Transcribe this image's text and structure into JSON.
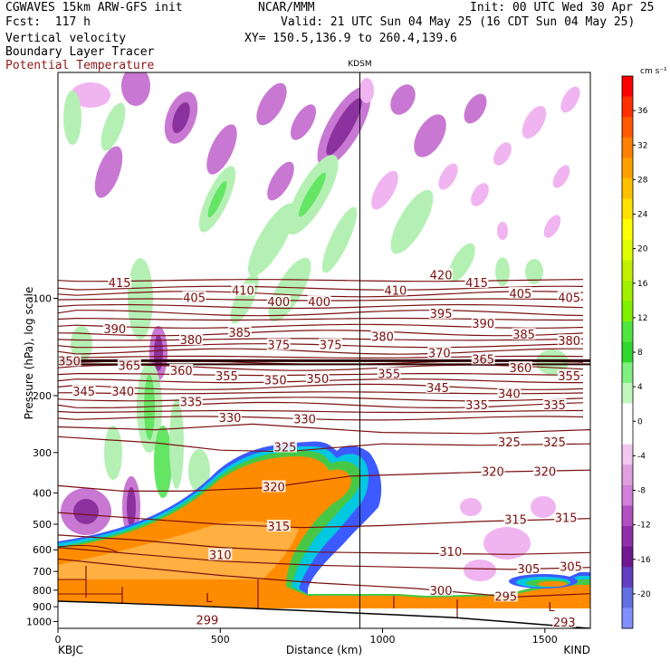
{
  "header": {
    "left1": "CGWAVES 15km ARW-GFS init",
    "left2": "Fcst:  117 h",
    "left3": "Vertical velocity",
    "left4": "Boundary Layer Tracer",
    "left5": "Potential Temperature",
    "center1": "NCAR/MMM",
    "right1": "Init: 00 UTC Wed 30 Apr 25",
    "right2": "Valid: 21 UTC Sun 04 May 25 (16 CDT Sun 04 May 25)",
    "right3": "XY= 150.5,136.9 to 260.4,139.6"
  },
  "colors": {
    "theta": "#7a1010",
    "tracer_orange": "#ff8c00",
    "tracer_light": "#ffb040",
    "tracer_green": "#46c846",
    "tracer_cyan": "#00c8e0",
    "tracer_blue": "#3c5aff",
    "w_up_light": "#b4f0b4",
    "w_up_green": "#64e664",
    "w_down_light": "#f0b4f0",
    "w_down_mid": "#c878d2",
    "w_down_dark": "#8c329e"
  },
  "chart_data": {
    "type": "cross-section",
    "station_marker": "KDSM",
    "station_distance_km": 930,
    "xlabel": "Distance (km)",
    "ylabel": "Pressure (hPa), log scale",
    "xlim": [
      0,
      1640
    ],
    "ylim": [
      1050,
      20
    ],
    "x_ticks": [
      0,
      500,
      1000,
      1500
    ],
    "x_end_labels": [
      "KBJC",
      "KIND"
    ],
    "y_ticks": [
      100,
      200,
      300,
      400,
      500,
      600,
      700,
      800,
      900,
      1000
    ],
    "colorbar": {
      "unit": "cm s⁻¹",
      "ticks": [
        36,
        32,
        28,
        24,
        20,
        16,
        12,
        8,
        4,
        0,
        -4,
        -8,
        -12,
        -16,
        -20
      ],
      "colors": [
        "#ff0000",
        "#ff3000",
        "#ff5a00",
        "#ff8000",
        "#ffa000",
        "#ffc000",
        "#ffe000",
        "#ffff00",
        "#e0ff00",
        "#c0f000",
        "#a0f000",
        "#80f000",
        "#50e640",
        "#30d830",
        "#80f080",
        "#c0f8c0",
        "#ffffff",
        "#ffffff",
        "#f0c8f0",
        "#e0a0e0",
        "#d080d8",
        "#b050c0",
        "#9030a8",
        "#701890",
        "#6040c0",
        "#6070e0",
        "#8090ff"
      ]
    },
    "theta_labels": [
      {
        "text": "415",
        "x": 190,
        "p": 90
      },
      {
        "text": "405",
        "x": 420,
        "p": 100
      },
      {
        "text": "410",
        "x": 570,
        "p": 95
      },
      {
        "text": "400",
        "x": 680,
        "p": 103
      },
      {
        "text": "400",
        "x": 805,
        "p": 103
      },
      {
        "text": "410",
        "x": 1040,
        "p": 95
      },
      {
        "text": "420",
        "x": 1180,
        "p": 85
      },
      {
        "text": "415",
        "x": 1290,
        "p": 90
      },
      {
        "text": "405",
        "x": 1425,
        "p": 97
      },
      {
        "text": "405",
        "x": 1575,
        "p": 100
      },
      {
        "text": "390",
        "x": 175,
        "p": 125
      },
      {
        "text": "380",
        "x": 410,
        "p": 135
      },
      {
        "text": "385",
        "x": 560,
        "p": 128
      },
      {
        "text": "375",
        "x": 680,
        "p": 140
      },
      {
        "text": "375",
        "x": 840,
        "p": 140
      },
      {
        "text": "395",
        "x": 1180,
        "p": 112
      },
      {
        "text": "390",
        "x": 1310,
        "p": 120
      },
      {
        "text": "385",
        "x": 1435,
        "p": 130
      },
      {
        "text": "380",
        "x": 1000,
        "p": 132
      },
      {
        "text": "380",
        "x": 1575,
        "p": 136
      },
      {
        "text": "370",
        "x": 1175,
        "p": 148
      },
      {
        "text": "365",
        "x": 1310,
        "p": 155
      },
      {
        "text": "360",
        "x": 1425,
        "p": 165
      },
      {
        "text": "355",
        "x": 1575,
        "p": 175
      },
      {
        "text": "350",
        "x": 35,
        "p": 157
      },
      {
        "text": "365",
        "x": 220,
        "p": 162
      },
      {
        "text": "360",
        "x": 380,
        "p": 168
      },
      {
        "text": "355",
        "x": 520,
        "p": 175
      },
      {
        "text": "350",
        "x": 670,
        "p": 180
      },
      {
        "text": "350",
        "x": 800,
        "p": 178
      },
      {
        "text": "355",
        "x": 1020,
        "p": 172
      },
      {
        "text": "345",
        "x": 1170,
        "p": 190
      },
      {
        "text": "340",
        "x": 1390,
        "p": 198
      },
      {
        "text": "345",
        "x": 80,
        "p": 195
      },
      {
        "text": "340",
        "x": 200,
        "p": 195
      },
      {
        "text": "335",
        "x": 410,
        "p": 210
      },
      {
        "text": "335",
        "x": 1290,
        "p": 215
      },
      {
        "text": "335",
        "x": 1530,
        "p": 215
      },
      {
        "text": "330",
        "x": 530,
        "p": 235
      },
      {
        "text": "330",
        "x": 760,
        "p": 237
      },
      {
        "text": "325",
        "x": 700,
        "p": 290
      },
      {
        "text": "325",
        "x": 1390,
        "p": 280
      },
      {
        "text": "325",
        "x": 1530,
        "p": 280
      },
      {
        "text": "320",
        "x": 665,
        "p": 385
      },
      {
        "text": "320",
        "x": 1340,
        "p": 345
      },
      {
        "text": "320",
        "x": 1500,
        "p": 345
      },
      {
        "text": "315",
        "x": 680,
        "p": 510
      },
      {
        "text": "315",
        "x": 1410,
        "p": 485
      },
      {
        "text": "315",
        "x": 1565,
        "p": 480
      },
      {
        "text": "310",
        "x": 500,
        "p": 625
      },
      {
        "text": "310",
        "x": 1210,
        "p": 610
      },
      {
        "text": "305",
        "x": 1450,
        "p": 690
      },
      {
        "text": "305",
        "x": 1580,
        "p": 680
      },
      {
        "text": "300",
        "x": 1180,
        "p": 805
      },
      {
        "text": "295",
        "x": 1380,
        "p": 840
      },
      {
        "text": "299",
        "x": 460,
        "p": 995
      },
      {
        "text": "293",
        "x": 1560,
        "p": 1010
      }
    ],
    "markers": [
      {
        "text": "L",
        "x": 465,
        "p": 850
      },
      {
        "text": "L",
        "x": 1520,
        "p": 905
      }
    ]
  }
}
